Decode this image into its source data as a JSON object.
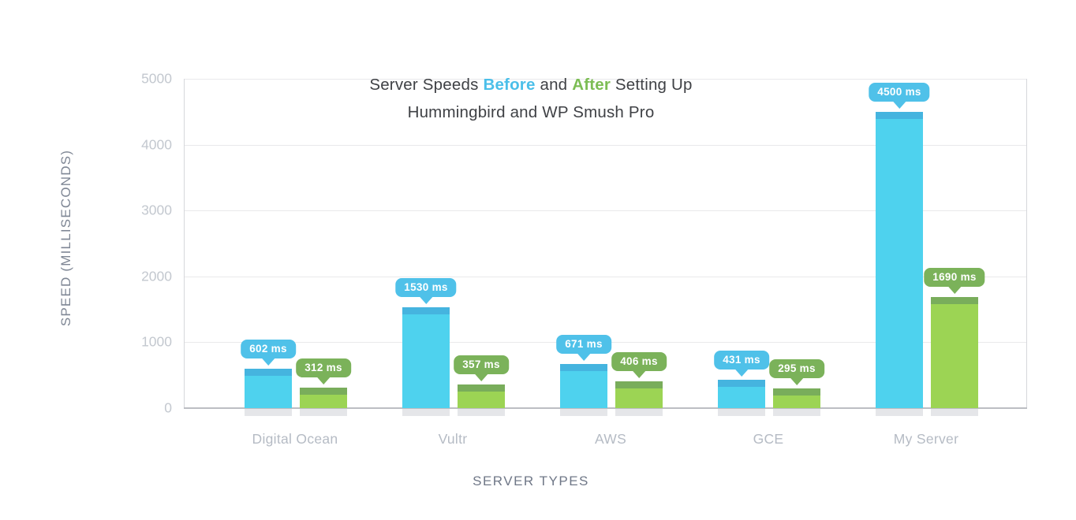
{
  "title": {
    "line1_segments": [
      {
        "text": "Server Speeds ",
        "color_key": "title_text",
        "accent": false
      },
      {
        "text": "Before",
        "color_key": "before_accent",
        "accent": true
      },
      {
        "text": " and ",
        "color_key": "title_text",
        "accent": false
      },
      {
        "text": "After",
        "color_key": "after_accent",
        "accent": true
      },
      {
        "text": " Setting Up",
        "color_key": "title_text",
        "accent": false
      }
    ],
    "line2": "Hummingbird and WP Smush Pro"
  },
  "axes": {
    "y_title": "SPEED (MILLISECONDS)",
    "x_title": "SERVER TYPES",
    "y_tick_labels": [
      "5000",
      "4000",
      "3000",
      "2000",
      "1000",
      "0"
    ]
  },
  "chart_data": {
    "type": "bar",
    "title": "Server Speeds Before and After Setting Up Hummingbird and WP Smush Pro",
    "categories": [
      "Digital Ocean",
      "Vultr",
      "AWS",
      "GCE",
      "My Server"
    ],
    "series": [
      {
        "name": "Before",
        "values": [
          602,
          1530,
          671,
          431,
          4500
        ]
      },
      {
        "name": "After",
        "values": [
          312,
          357,
          406,
          295,
          1690
        ]
      }
    ],
    "value_labels": [
      [
        "602 ms",
        "1530 ms",
        "671 ms",
        "431 ms",
        "4500 ms"
      ],
      [
        "312 ms",
        "357 ms",
        "406 ms",
        "295 ms",
        "1690 ms"
      ]
    ],
    "value_suffix": " ms",
    "xlabel": "SERVER TYPES",
    "ylabel": "SPEED (MILLISECONDS)",
    "ylim": [
      0,
      5000
    ],
    "y_ticks": [
      0,
      1000,
      2000,
      3000,
      4000,
      5000
    ],
    "grid": true,
    "legend_position": "none"
  },
  "colors": {
    "title_text": "#3f4145",
    "before_accent": "#4bbfe9",
    "after_accent": "#7cbd54",
    "before_bar": "#4ed2ee",
    "before_bar_cap": "#45b4df",
    "before_tooltip": "#4fc1e9",
    "after_bar": "#9cd454",
    "after_bar_cap": "#79ad5b",
    "after_tooltip": "#7bb25a",
    "tooltip_text": "#ffffff",
    "gridline": "#e9e9eb",
    "axis_line": "#d6d7db",
    "baseline": "#bcbec3",
    "bar_base_pad": "#e5e6e9",
    "tick_label": "#c3c8cf",
    "category_label": "#b5bbc4",
    "axis_title": "#7e8694",
    "background": "#ffffff"
  }
}
